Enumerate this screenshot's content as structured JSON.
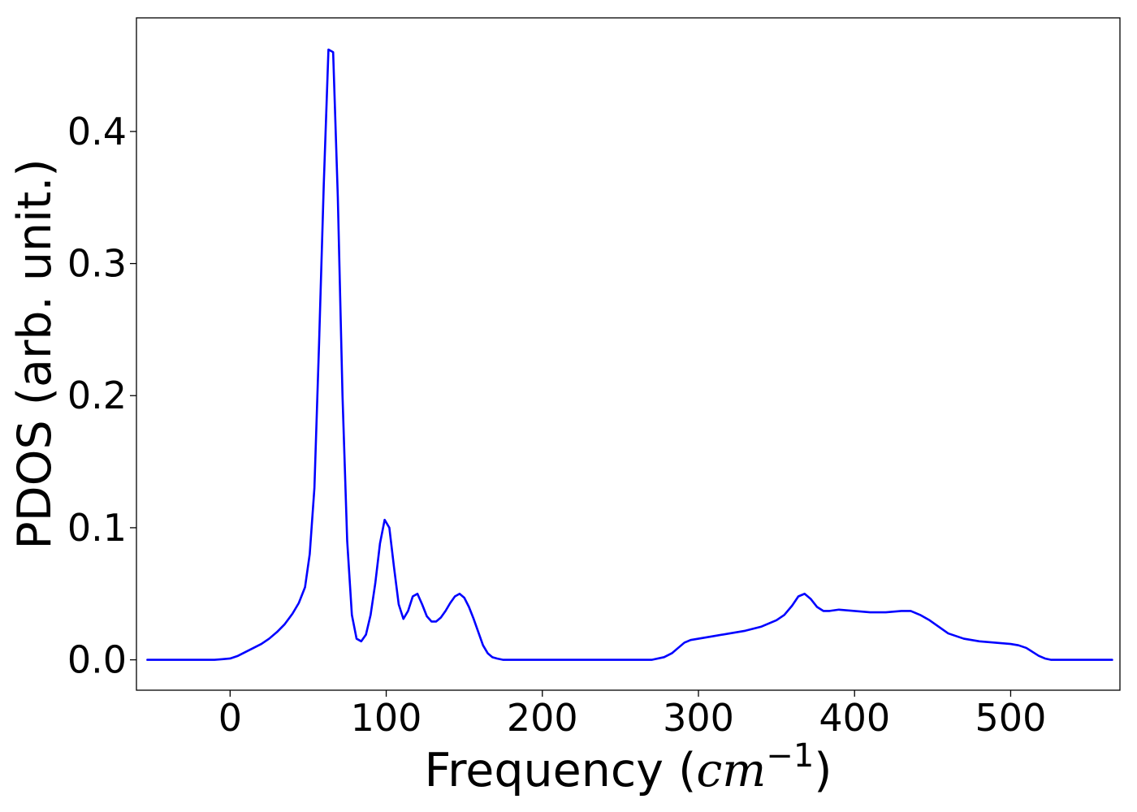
{
  "chart_data": {
    "type": "line",
    "title": "",
    "xlabel": {
      "prefix": "Frequency (",
      "unit_base": "cm",
      "unit_exponent": "−1",
      "suffix": ")"
    },
    "ylabel": "PDOS (arb. unit.)",
    "xlim": [
      -60,
      570
    ],
    "ylim": [
      -0.023,
      0.486
    ],
    "xticks": [
      0,
      100,
      200,
      300,
      400,
      500
    ],
    "yticks": [
      0.0,
      0.1,
      0.2,
      0.3,
      0.4
    ],
    "grid": false,
    "legend": "none",
    "series": [
      {
        "color": "#0000ff",
        "x": [
          -53,
          -40,
          -20,
          -10,
          -5,
          0,
          5,
          10,
          15,
          20,
          25,
          30,
          35,
          40,
          44,
          48,
          51,
          54,
          57,
          60,
          63,
          66,
          69,
          72,
          75,
          78,
          81,
          84,
          87,
          90,
          93,
          96,
          99,
          102,
          105,
          108,
          111,
          114,
          117,
          120,
          123,
          126,
          129,
          132,
          135,
          138,
          141,
          144,
          147,
          150,
          153,
          156,
          159,
          162,
          165,
          168,
          171,
          175,
          180,
          200,
          250,
          270,
          278,
          283,
          287,
          291,
          295,
          300,
          310,
          320,
          330,
          340,
          350,
          355,
          360,
          364,
          368,
          372,
          376,
          380,
          384,
          390,
          400,
          410,
          420,
          430,
          436,
          442,
          448,
          454,
          460,
          470,
          480,
          490,
          500,
          505,
          510,
          514,
          518,
          522,
          526,
          535,
          550,
          565
        ],
        "y": [
          0.0,
          0.0,
          0.0,
          0.0,
          0.0005,
          0.001,
          0.003,
          0.006,
          0.009,
          0.012,
          0.016,
          0.021,
          0.027,
          0.035,
          0.043,
          0.055,
          0.08,
          0.13,
          0.24,
          0.36,
          0.462,
          0.46,
          0.35,
          0.2,
          0.09,
          0.034,
          0.016,
          0.014,
          0.019,
          0.034,
          0.058,
          0.088,
          0.106,
          0.1,
          0.07,
          0.042,
          0.031,
          0.037,
          0.048,
          0.05,
          0.042,
          0.033,
          0.029,
          0.029,
          0.032,
          0.037,
          0.043,
          0.048,
          0.05,
          0.047,
          0.04,
          0.031,
          0.021,
          0.011,
          0.005,
          0.002,
          0.001,
          0.0,
          0.0,
          0.0,
          0.0,
          0.0,
          0.002,
          0.005,
          0.009,
          0.013,
          0.015,
          0.016,
          0.018,
          0.02,
          0.022,
          0.025,
          0.03,
          0.034,
          0.041,
          0.048,
          0.05,
          0.046,
          0.04,
          0.037,
          0.037,
          0.038,
          0.037,
          0.036,
          0.036,
          0.037,
          0.037,
          0.034,
          0.03,
          0.025,
          0.02,
          0.016,
          0.014,
          0.013,
          0.012,
          0.011,
          0.009,
          0.006,
          0.003,
          0.001,
          0.0,
          0.0,
          0.0,
          0.0
        ]
      }
    ]
  }
}
